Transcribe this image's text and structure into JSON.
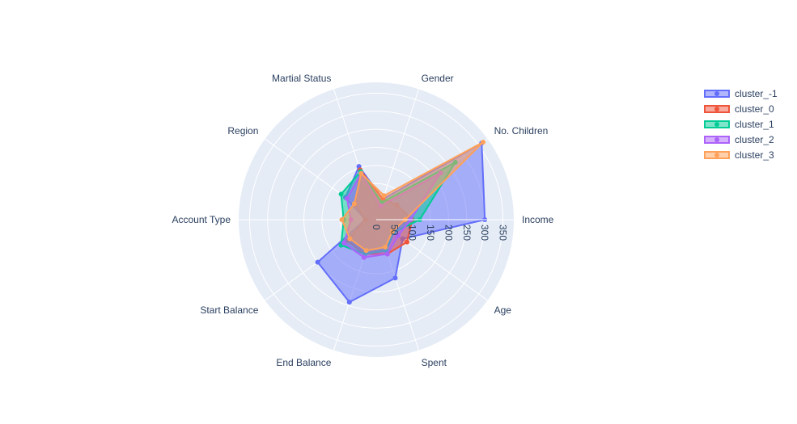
{
  "chart_data": {
    "type": "radar",
    "title": "",
    "axes": [
      "Income",
      "No. Children",
      "Gender",
      "Martial Status",
      "Region",
      "Account Type",
      "Start Balance",
      "End Balance",
      "Spent",
      "Age"
    ],
    "radial_ticks": [
      0,
      50,
      100,
      150,
      200,
      250,
      300,
      350
    ],
    "radial_range": [
      0,
      380
    ],
    "legend_position": "top-right",
    "grid": true,
    "series": [
      {
        "name": "cluster_-1",
        "color": "#636efa",
        "values": [
          300,
          360,
          60,
          155,
          105,
          30,
          200,
          240,
          170,
          90
        ]
      },
      {
        "name": "cluster_0",
        "color": "#ef553b",
        "values": [
          100,
          70,
          60,
          145,
          70,
          30,
          100,
          100,
          100,
          105
        ]
      },
      {
        "name": "cluster_1",
        "color": "#00cc96",
        "values": [
          120,
          270,
          50,
          140,
          120,
          90,
          120,
          100,
          90,
          60
        ]
      },
      {
        "name": "cluster_2",
        "color": "#ab63fa",
        "values": [
          95,
          220,
          40,
          135,
          100,
          70,
          110,
          110,
          100,
          75
        ]
      },
      {
        "name": "cluster_3",
        "color": "#ffa15a",
        "values": [
          80,
          365,
          70,
          135,
          75,
          95,
          90,
          90,
          80,
          55
        ]
      }
    ]
  }
}
